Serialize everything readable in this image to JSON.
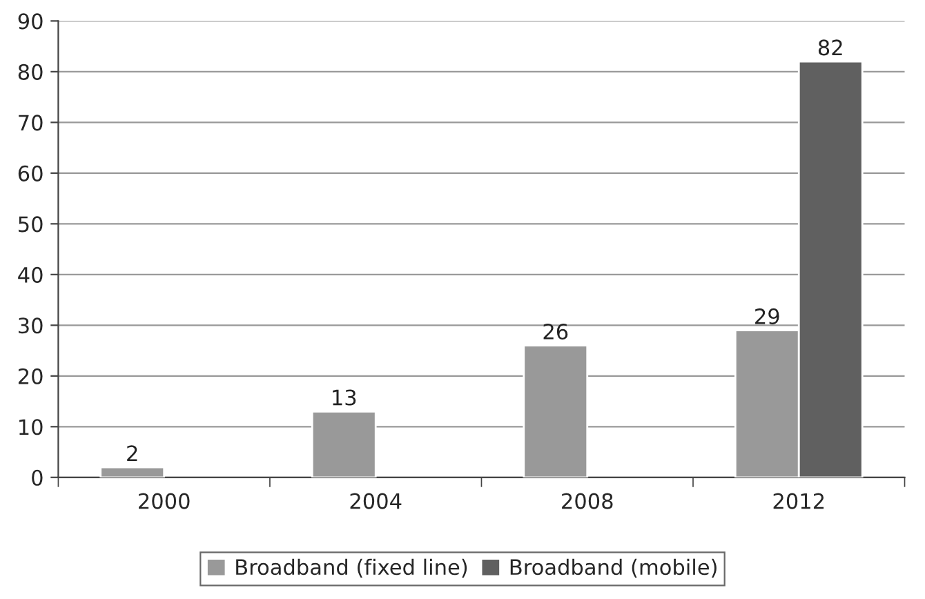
{
  "chart_data": {
    "type": "bar",
    "categories": [
      "2000",
      "2004",
      "2008",
      "2012"
    ],
    "series": [
      {
        "name": "Broadband (fixed line)",
        "color": "#999999",
        "values": [
          2,
          13,
          26,
          29
        ]
      },
      {
        "name": "Broadband (mobile)",
        "color": "#606060",
        "values": [
          null,
          null,
          null,
          82
        ]
      }
    ],
    "ylim": [
      0,
      90
    ],
    "yticks": [
      0,
      10,
      20,
      30,
      40,
      50,
      60,
      70,
      80,
      90
    ],
    "grid": "y",
    "legend": "bottom",
    "data_labels": true
  }
}
